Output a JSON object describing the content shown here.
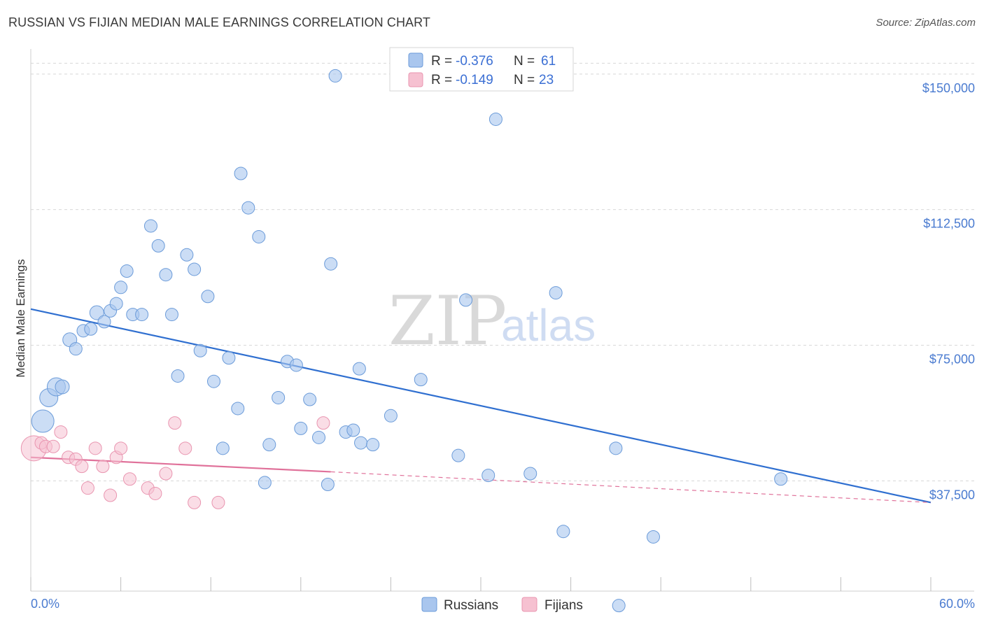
{
  "header": {
    "title": "RUSSIAN VS FIJIAN MEDIAN MALE EARNINGS CORRELATION CHART",
    "source": "Source: ZipAtlas.com"
  },
  "watermark": {
    "zip": "ZIP",
    "atlas": "atlas"
  },
  "colors": {
    "russians_fill": "#a9c6ee",
    "russians_stroke": "#6b9bd9",
    "russians_line": "#2f6fd0",
    "fijians_fill": "#f6c1d1",
    "fijians_stroke": "#e995b0",
    "fijians_line": "#e0719a",
    "grid": "#d8d8d8",
    "axis_text": "#4a7bd0"
  },
  "legend": {
    "rows": [
      {
        "r_label": "R = ",
        "r_value": "-0.376",
        "n_label": "N = ",
        "n_value": "61"
      },
      {
        "r_label": "R = ",
        "r_value": "-0.149",
        "n_label": "N = ",
        "n_value": "23"
      }
    ]
  },
  "bottom_legend": {
    "russians": "Russians",
    "fijians": "Fijians"
  },
  "chart_data": {
    "type": "scatter",
    "title": "RUSSIAN VS FIJIAN MEDIAN MALE EARNINGS CORRELATION CHART",
    "xlabel": "",
    "ylabel": "Median Male Earnings",
    "xlim": [
      0,
      60
    ],
    "ylim": [
      7000,
      155000
    ],
    "x_tick_labels": [
      "0.0%",
      "60.0%"
    ],
    "y_ticks": [
      37500,
      75000,
      112500,
      150000
    ],
    "y_tick_labels": [
      "$37,500",
      "$75,000",
      "$112,500",
      "$150,000"
    ],
    "grid": true,
    "series": [
      {
        "name": "Russians",
        "R": -0.376,
        "N": 61,
        "trend": {
          "x0": 0,
          "y0": 85000,
          "x1": 60,
          "y1": 31500
        },
        "points": [
          {
            "x": 0.8,
            "y": 54000,
            "s": 16
          },
          {
            "x": 1.2,
            "y": 60500,
            "s": 13
          },
          {
            "x": 1.7,
            "y": 63500,
            "s": 13
          },
          {
            "x": 2.1,
            "y": 63500,
            "s": 10
          },
          {
            "x": 2.6,
            "y": 76500,
            "s": 10
          },
          {
            "x": 3.0,
            "y": 74000,
            "s": 9
          },
          {
            "x": 3.5,
            "y": 79000,
            "s": 9
          },
          {
            "x": 4.0,
            "y": 79500,
            "s": 9
          },
          {
            "x": 4.4,
            "y": 84000,
            "s": 10
          },
          {
            "x": 4.9,
            "y": 81500,
            "s": 9
          },
          {
            "x": 5.3,
            "y": 84500,
            "s": 9
          },
          {
            "x": 5.7,
            "y": 86500,
            "s": 9
          },
          {
            "x": 6.0,
            "y": 91000,
            "s": 9
          },
          {
            "x": 6.4,
            "y": 95500,
            "s": 9
          },
          {
            "x": 6.8,
            "y": 83500,
            "s": 9
          },
          {
            "x": 7.4,
            "y": 83500,
            "s": 9
          },
          {
            "x": 8.0,
            "y": 108000,
            "s": 9
          },
          {
            "x": 8.5,
            "y": 102500,
            "s": 9
          },
          {
            "x": 9.0,
            "y": 94500,
            "s": 9
          },
          {
            "x": 9.4,
            "y": 83500,
            "s": 9
          },
          {
            "x": 9.8,
            "y": 66500,
            "s": 9
          },
          {
            "x": 10.4,
            "y": 100000,
            "s": 9
          },
          {
            "x": 10.9,
            "y": 96000,
            "s": 9
          },
          {
            "x": 11.3,
            "y": 73500,
            "s": 9
          },
          {
            "x": 11.8,
            "y": 88500,
            "s": 9
          },
          {
            "x": 12.2,
            "y": 65000,
            "s": 9
          },
          {
            "x": 12.8,
            "y": 46500,
            "s": 9
          },
          {
            "x": 13.2,
            "y": 71500,
            "s": 9
          },
          {
            "x": 13.8,
            "y": 57500,
            "s": 9
          },
          {
            "x": 14.0,
            "y": 122500,
            "s": 9
          },
          {
            "x": 14.5,
            "y": 113000,
            "s": 9
          },
          {
            "x": 15.2,
            "y": 105000,
            "s": 9
          },
          {
            "x": 15.6,
            "y": 37000,
            "s": 9
          },
          {
            "x": 15.9,
            "y": 47500,
            "s": 9
          },
          {
            "x": 16.5,
            "y": 60500,
            "s": 9
          },
          {
            "x": 17.1,
            "y": 70500,
            "s": 9
          },
          {
            "x": 17.7,
            "y": 69500,
            "s": 9
          },
          {
            "x": 18.0,
            "y": 52000,
            "s": 9
          },
          {
            "x": 18.6,
            "y": 60000,
            "s": 9
          },
          {
            "x": 19.2,
            "y": 49500,
            "s": 9
          },
          {
            "x": 19.8,
            "y": 36500,
            "s": 9
          },
          {
            "x": 20.0,
            "y": 97500,
            "s": 9
          },
          {
            "x": 20.3,
            "y": 149500,
            "s": 9
          },
          {
            "x": 21.0,
            "y": 51000,
            "s": 9
          },
          {
            "x": 21.5,
            "y": 51500,
            "s": 9
          },
          {
            "x": 21.9,
            "y": 68500,
            "s": 9
          },
          {
            "x": 22.0,
            "y": 48000,
            "s": 9
          },
          {
            "x": 22.8,
            "y": 47500,
            "s": 9
          },
          {
            "x": 24.0,
            "y": 55500,
            "s": 9
          },
          {
            "x": 26.0,
            "y": 65500,
            "s": 9
          },
          {
            "x": 28.5,
            "y": 44500,
            "s": 9
          },
          {
            "x": 29.0,
            "y": 87500,
            "s": 9
          },
          {
            "x": 30.5,
            "y": 39000,
            "s": 9
          },
          {
            "x": 31.0,
            "y": 137500,
            "s": 9
          },
          {
            "x": 33.3,
            "y": 39500,
            "s": 9
          },
          {
            "x": 35.0,
            "y": 89500,
            "s": 9
          },
          {
            "x": 35.5,
            "y": 23500,
            "s": 9
          },
          {
            "x": 39.0,
            "y": 46500,
            "s": 9
          },
          {
            "x": 39.2,
            "y": 3000,
            "s": 9
          },
          {
            "x": 41.5,
            "y": 22000,
            "s": 9
          },
          {
            "x": 50.0,
            "y": 38000,
            "s": 9
          }
        ]
      },
      {
        "name": "Fijians",
        "R": -0.149,
        "N": 23,
        "trend": {
          "x0": 0,
          "y0": 44000,
          "x1": 20,
          "y1": 40000,
          "dash_to_x": 60,
          "dash_to_y": 31500
        },
        "points": [
          {
            "x": 0.2,
            "y": 46500,
            "s": 18
          },
          {
            "x": 0.7,
            "y": 48000,
            "s": 9
          },
          {
            "x": 1.0,
            "y": 47000,
            "s": 9
          },
          {
            "x": 1.5,
            "y": 47000,
            "s": 9
          },
          {
            "x": 2.0,
            "y": 51000,
            "s": 9
          },
          {
            "x": 2.5,
            "y": 44000,
            "s": 9
          },
          {
            "x": 3.0,
            "y": 43500,
            "s": 9
          },
          {
            "x": 3.4,
            "y": 41500,
            "s": 9
          },
          {
            "x": 3.8,
            "y": 35500,
            "s": 9
          },
          {
            "x": 4.3,
            "y": 46500,
            "s": 9
          },
          {
            "x": 4.8,
            "y": 41500,
            "s": 9
          },
          {
            "x": 5.3,
            "y": 33500,
            "s": 9
          },
          {
            "x": 5.7,
            "y": 44000,
            "s": 9
          },
          {
            "x": 6.0,
            "y": 46500,
            "s": 9
          },
          {
            "x": 6.6,
            "y": 38000,
            "s": 9
          },
          {
            "x": 7.8,
            "y": 35500,
            "s": 9
          },
          {
            "x": 8.3,
            "y": 34000,
            "s": 9
          },
          {
            "x": 9.0,
            "y": 39500,
            "s": 9
          },
          {
            "x": 9.6,
            "y": 53500,
            "s": 9
          },
          {
            "x": 10.3,
            "y": 46500,
            "s": 9
          },
          {
            "x": 10.9,
            "y": 31500,
            "s": 9
          },
          {
            "x": 12.5,
            "y": 31500,
            "s": 9
          },
          {
            "x": 19.5,
            "y": 53500,
            "s": 9
          }
        ]
      }
    ]
  }
}
